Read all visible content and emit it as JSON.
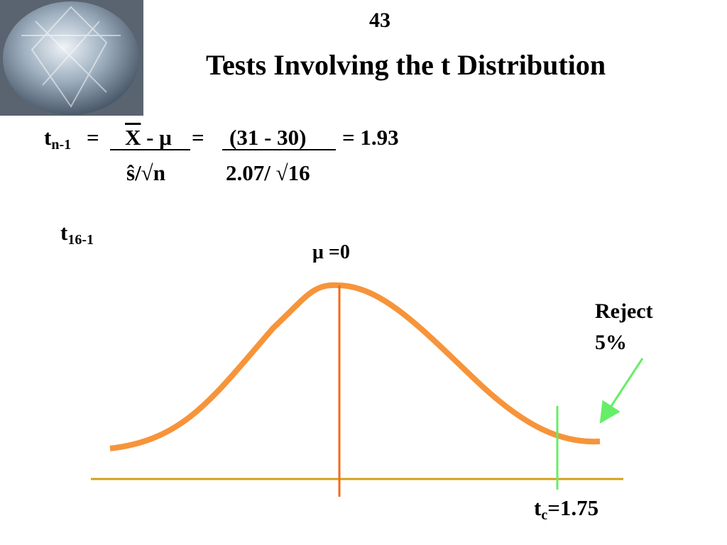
{
  "page_number": "43",
  "title": "Tests Involving the t Distribution",
  "formula": {
    "lhs": {
      "base": "t",
      "sub": "n-1"
    },
    "eq1": "=",
    "numerator1": {
      "bar": "X",
      "rest": " - μ"
    },
    "denominator1": "ŝ/√n",
    "eq2": "=",
    "numerator2": "(31 - 30)",
    "denominator2": "2.07/ √16",
    "result": "= 1.93"
  },
  "distribution_label": {
    "base": "t",
    "sub": "16-1"
  },
  "mean_label": "μ =0",
  "reject_label": [
    "Reject",
    "5%"
  ],
  "critical_label": {
    "base": "t",
    "sub": "c",
    "text": "=1.75"
  }
}
